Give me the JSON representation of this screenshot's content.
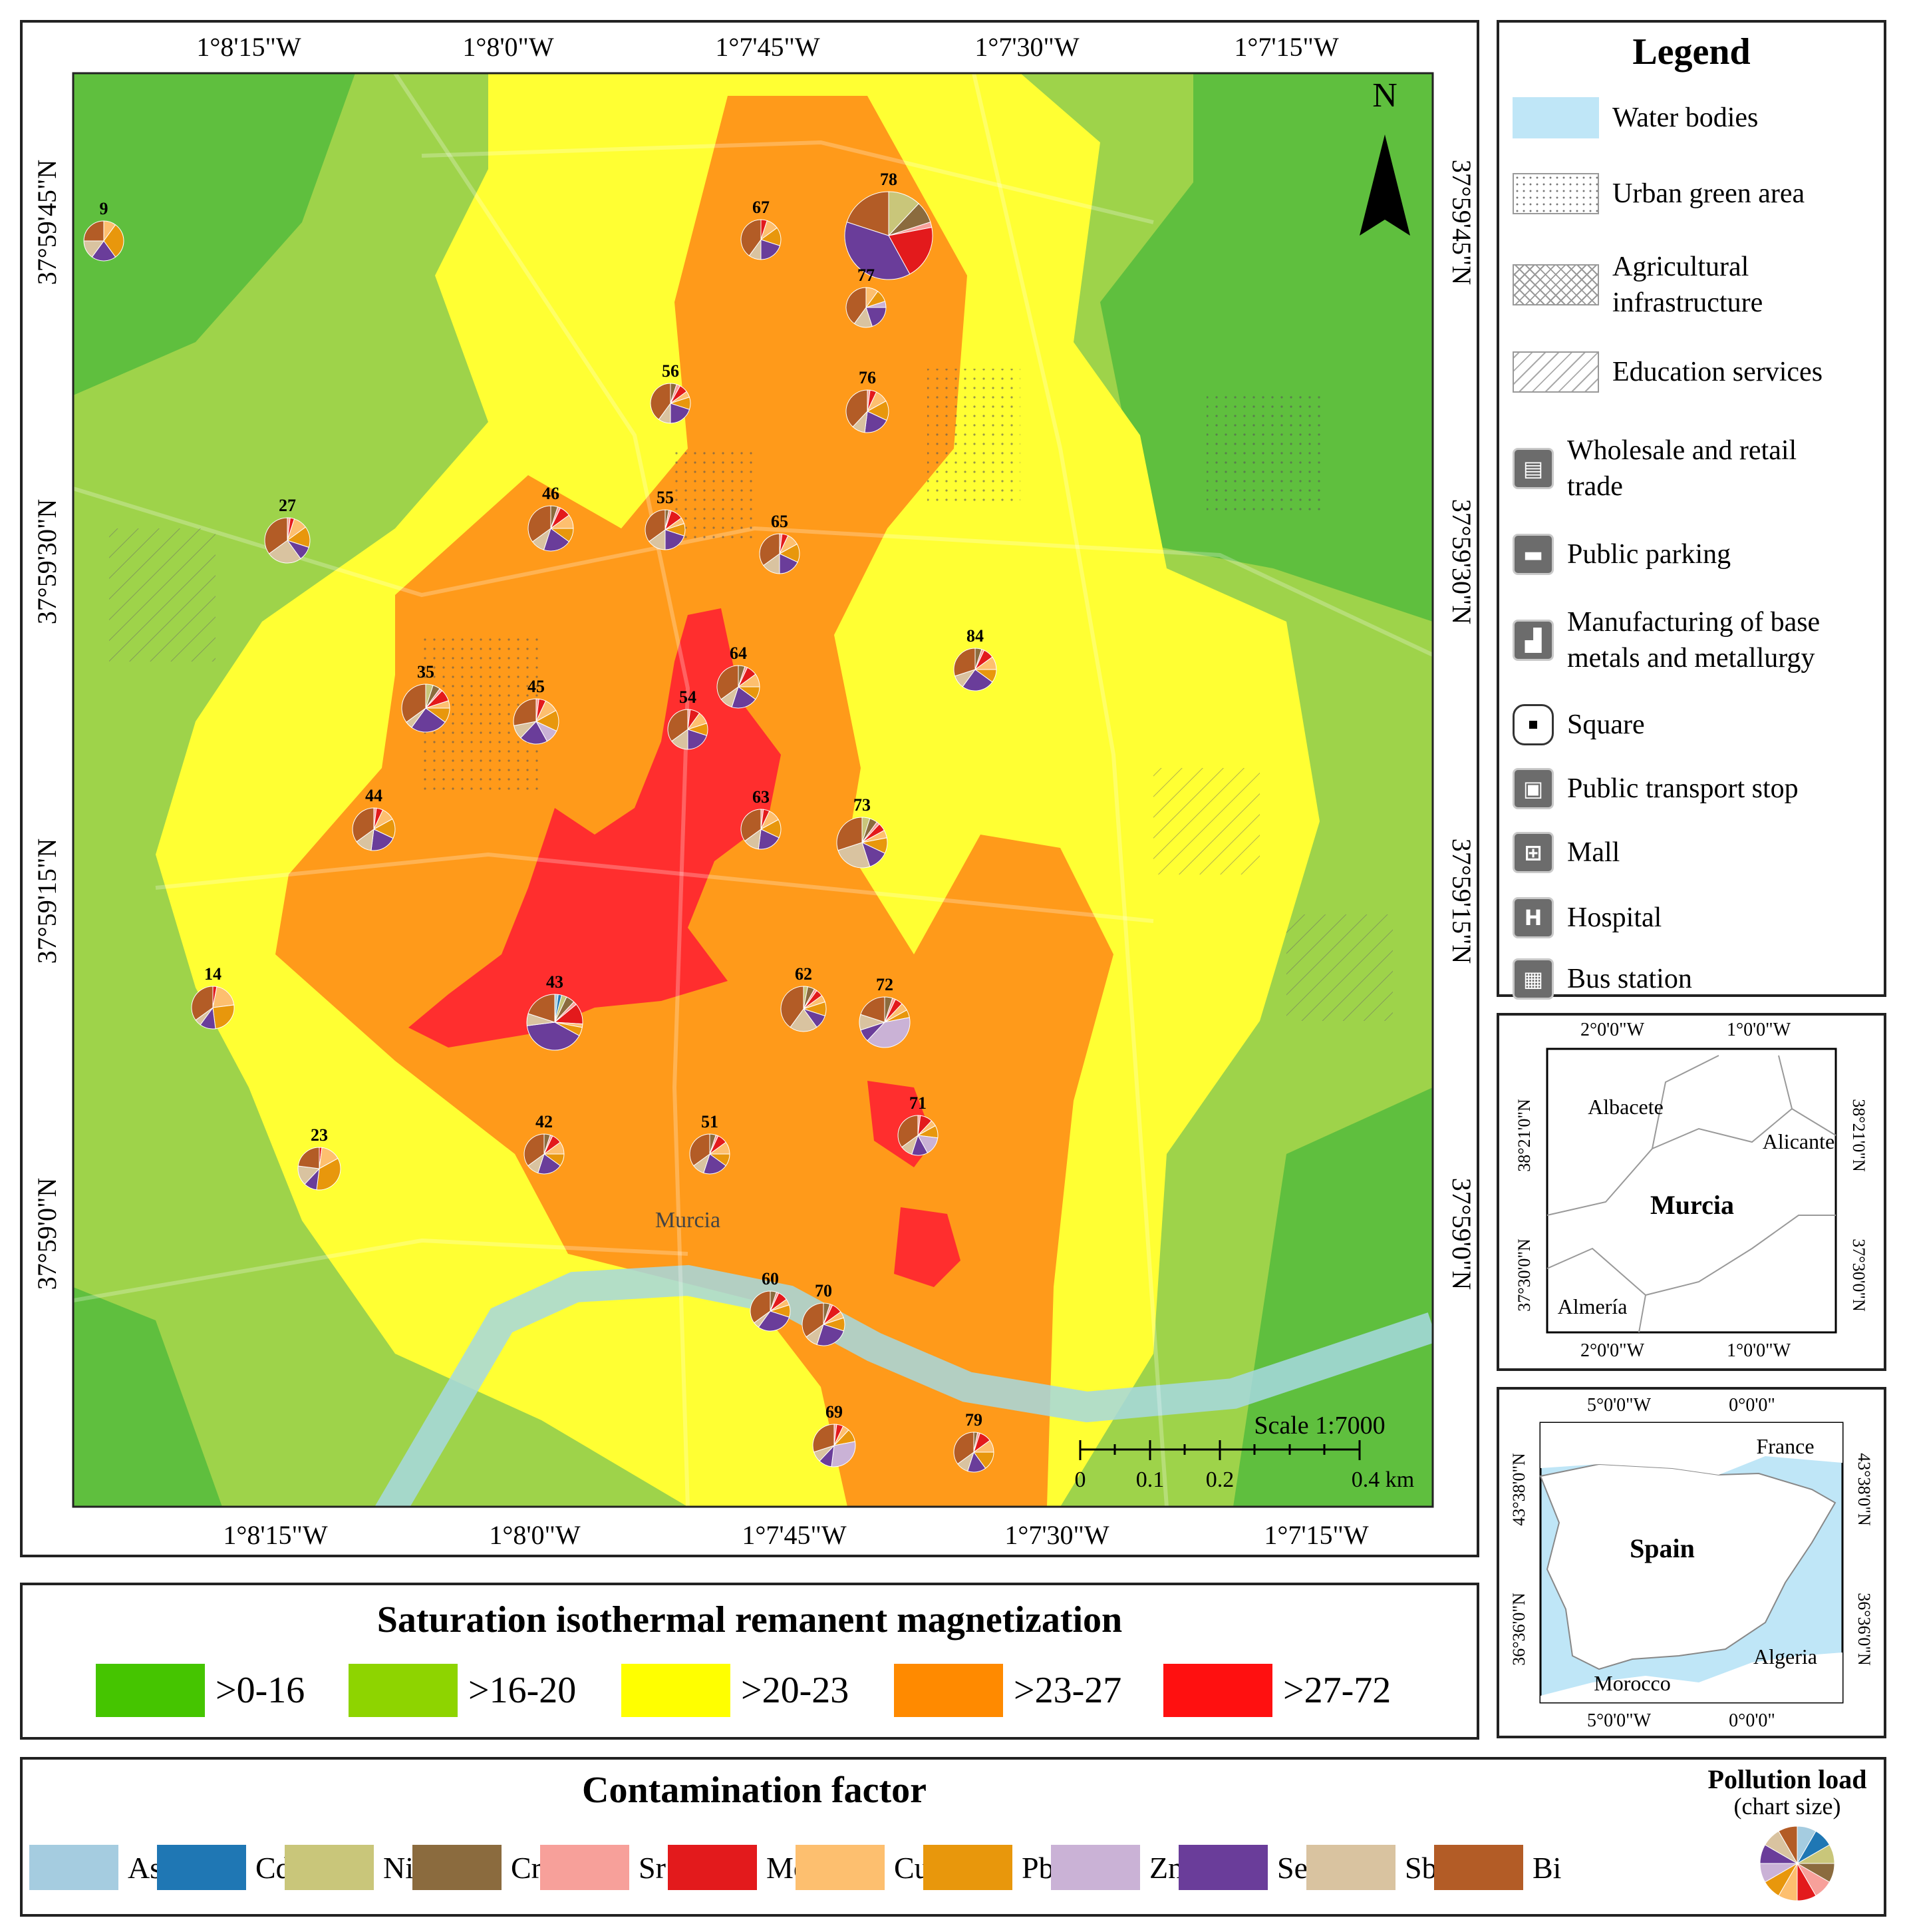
{
  "north_arrow": "N",
  "map_coords": {
    "top_longitudes": [
      "1°8'15\"W",
      "1°8'0\"W",
      "1°7'45\"W",
      "1°7'30\"W",
      "1°7'15\"W"
    ],
    "bottom_longitudes": [
      "1°8'15\"W",
      "1°8'0\"W",
      "1°7'45\"W",
      "1°7'30\"W",
      "1°7'15\"W"
    ],
    "left_latitudes": [
      "37°59'45\"N",
      "37°59'30\"N",
      "37°59'15\"N",
      "37°59'0\"N"
    ],
    "right_latitudes": [
      "37°59'45\"N",
      "37°59'30\"N",
      "37°59'15\"N",
      "37°59'0\"N"
    ]
  },
  "scale": {
    "title": "Scale 1:7000",
    "ticks": [
      "0",
      "0.1",
      "0.2",
      "0.4 km"
    ]
  },
  "place_label": "Murcia",
  "sample_sites": [
    {
      "id": "9",
      "slices": [
        0,
        0,
        0,
        0,
        0,
        0,
        0.1,
        0.3,
        0,
        0.2,
        0.15,
        0.25
      ]
    },
    {
      "id": "67",
      "slices": [
        0,
        0,
        0,
        0,
        0,
        0.05,
        0.1,
        0.15,
        0,
        0.2,
        0.1,
        0.4
      ]
    },
    {
      "id": "78",
      "slices": [
        0,
        0,
        0.12,
        0.08,
        0.02,
        0.2,
        0,
        0,
        0,
        0.38,
        0,
        0.2
      ]
    },
    {
      "id": "77",
      "slices": [
        0,
        0,
        0,
        0,
        0,
        0,
        0.1,
        0.1,
        0.05,
        0.2,
        0.15,
        0.4
      ]
    },
    {
      "id": "56",
      "slices": [
        0,
        0,
        0,
        0.05,
        0.03,
        0.07,
        0.05,
        0.1,
        0,
        0.2,
        0.1,
        0.4
      ]
    },
    {
      "id": "76",
      "slices": [
        0,
        0,
        0,
        0,
        0.02,
        0.05,
        0.1,
        0.15,
        0,
        0.2,
        0.1,
        0.38
      ]
    },
    {
      "id": "27",
      "slices": [
        0,
        0,
        0,
        0,
        0.02,
        0.03,
        0.1,
        0.15,
        0,
        0.1,
        0.25,
        0.35
      ]
    },
    {
      "id": "46",
      "slices": [
        0,
        0,
        0,
        0.05,
        0.02,
        0.08,
        0.1,
        0.1,
        0,
        0.2,
        0.1,
        0.35
      ]
    },
    {
      "id": "55",
      "slices": [
        0,
        0,
        0,
        0.03,
        0.02,
        0.1,
        0.05,
        0.1,
        0,
        0.2,
        0.15,
        0.35
      ]
    },
    {
      "id": "65",
      "slices": [
        0,
        0,
        0,
        0,
        0.02,
        0.05,
        0.1,
        0.15,
        0,
        0.18,
        0.15,
        0.35
      ]
    },
    {
      "id": "84",
      "slices": [
        0,
        0,
        0,
        0.05,
        0.02,
        0.08,
        0.1,
        0.1,
        0,
        0.25,
        0.1,
        0.3
      ]
    },
    {
      "id": "35",
      "slices": [
        0,
        0,
        0.05,
        0.05,
        0.02,
        0.08,
        0.05,
        0.1,
        0,
        0.25,
        0.05,
        0.35
      ]
    },
    {
      "id": "45",
      "slices": [
        0,
        0,
        0,
        0,
        0.02,
        0.05,
        0.1,
        0.15,
        0.1,
        0.2,
        0.1,
        0.28
      ]
    },
    {
      "id": "54",
      "slices": [
        0,
        0,
        0,
        0,
        0.02,
        0.08,
        0.1,
        0.1,
        0,
        0.2,
        0.15,
        0.35
      ]
    },
    {
      "id": "64",
      "slices": [
        0,
        0,
        0,
        0.05,
        0.02,
        0.08,
        0.1,
        0.1,
        0,
        0.2,
        0.1,
        0.35
      ]
    },
    {
      "id": "44",
      "slices": [
        0,
        0,
        0,
        0,
        0.02,
        0.05,
        0.1,
        0.15,
        0,
        0.2,
        0.13,
        0.35
      ]
    },
    {
      "id": "63",
      "slices": [
        0,
        0,
        0,
        0,
        0.02,
        0.05,
        0.1,
        0.15,
        0,
        0.2,
        0.13,
        0.35
      ]
    },
    {
      "id": "73",
      "slices": [
        0,
        0,
        0.05,
        0.05,
        0.02,
        0.05,
        0.05,
        0.1,
        0,
        0.13,
        0.25,
        0.3
      ]
    },
    {
      "id": "14",
      "slices": [
        0,
        0,
        0,
        0,
        0,
        0.03,
        0.2,
        0.25,
        0,
        0.12,
        0.05,
        0.35
      ]
    },
    {
      "id": "43",
      "slices": [
        0.02,
        0.02,
        0.03,
        0.05,
        0.02,
        0.12,
        0.02,
        0.05,
        0,
        0.4,
        0.07,
        0.2
      ]
    },
    {
      "id": "62",
      "slices": [
        0,
        0,
        0.03,
        0.05,
        0.02,
        0.05,
        0.05,
        0.1,
        0,
        0.1,
        0.2,
        0.4
      ]
    },
    {
      "id": "72",
      "slices": [
        0,
        0,
        0,
        0.05,
        0.02,
        0.05,
        0.05,
        0.05,
        0.4,
        0.08,
        0.1,
        0.2
      ]
    },
    {
      "id": "71",
      "slices": [
        0,
        0,
        0,
        0,
        0.02,
        0.1,
        0.05,
        0.1,
        0.15,
        0.13,
        0.1,
        0.35
      ]
    },
    {
      "id": "23",
      "slices": [
        0,
        0,
        0,
        0,
        0,
        0.02,
        0.15,
        0.35,
        0,
        0.1,
        0.15,
        0.23
      ]
    },
    {
      "id": "42",
      "slices": [
        0,
        0,
        0,
        0.05,
        0.02,
        0.08,
        0.1,
        0.1,
        0,
        0.2,
        0.1,
        0.35
      ]
    },
    {
      "id": "51",
      "slices": [
        0,
        0,
        0,
        0.05,
        0.02,
        0.08,
        0.1,
        0.1,
        0,
        0.2,
        0.1,
        0.35
      ]
    },
    {
      "id": "60",
      "slices": [
        0,
        0,
        0,
        0.05,
        0.02,
        0.08,
        0.05,
        0.1,
        0,
        0.3,
        0.05,
        0.35
      ]
    },
    {
      "id": "70",
      "slices": [
        0,
        0,
        0,
        0.05,
        0.02,
        0.08,
        0.05,
        0.1,
        0,
        0.25,
        0.1,
        0.35
      ]
    },
    {
      "id": "69",
      "slices": [
        0,
        0,
        0,
        0,
        0.02,
        0.05,
        0.05,
        0.1,
        0.3,
        0.1,
        0.08,
        0.3
      ]
    },
    {
      "id": "79",
      "slices": [
        0,
        0,
        0,
        0.03,
        0.02,
        0.1,
        0.1,
        0.15,
        0,
        0.15,
        0.1,
        0.35
      ]
    }
  ],
  "legend": {
    "title": "Legend",
    "items": [
      {
        "label": "Water bodies",
        "kind": "water"
      },
      {
        "label": "Urban green area",
        "kind": "dots"
      },
      {
        "label": "Agricultural infrastructure",
        "kind": "cross"
      },
      {
        "label": "Education services",
        "kind": "hatch"
      },
      {
        "label": "Wholesale and retail trade",
        "kind": "icon",
        "glyph": "▤"
      },
      {
        "label": "Public parking",
        "kind": "icon",
        "glyph": "▬"
      },
      {
        "label": "Manufacturing of base metals and metallurgy",
        "kind": "icon",
        "glyph": "▟"
      },
      {
        "label": "Square",
        "kind": "square"
      },
      {
        "label": "Public transport stop",
        "kind": "icon",
        "glyph": "▣"
      },
      {
        "label": "Mall",
        "kind": "icon",
        "glyph": "⊞"
      },
      {
        "label": "Hospital",
        "kind": "icon",
        "glyph": "H"
      },
      {
        "label": "Bus station",
        "kind": "icon",
        "glyph": "▦"
      }
    ]
  },
  "murcia_inset": {
    "top_lons": [
      "2°0'0\"W",
      "1°0'0\"W"
    ],
    "bottom_lons": [
      "2°0'0\"W",
      "1°0'0\"W"
    ],
    "lats": [
      "38°21'0\"N",
      "37°30'0\"N"
    ],
    "places": {
      "albacete": "Albacete",
      "alicante": "Alicante",
      "murcia": "Murcia",
      "almeria": "Almería"
    }
  },
  "spain_inset": {
    "top_lons": [
      "5°0'0\"W",
      "0°0'0\""
    ],
    "bottom_lons": [
      "5°0'0\"W",
      "0°0'0\""
    ],
    "lats": [
      "43°38'0\"N",
      "36°36'0\"N"
    ],
    "places": {
      "france": "France",
      "spain": "Spain",
      "algeria": "Algeria",
      "morocco": "Morocco"
    }
  },
  "sirm": {
    "title": "Saturation isothermal remanent magnetization",
    "classes": [
      {
        "label": ">0-16",
        "color": "#45c500"
      },
      {
        "label": ">16-20",
        "color": "#8ed400"
      },
      {
        "label": ">20-23",
        "color": "#ffff00"
      },
      {
        "label": ">23-27",
        "color": "#ff8a00"
      },
      {
        "label": ">27-72",
        "color": "#ff1010"
      }
    ]
  },
  "contamination": {
    "title": "Contamination factor",
    "elements": [
      {
        "label": "As",
        "color": "#a5cce0"
      },
      {
        "label": "Cd",
        "color": "#1f77b4"
      },
      {
        "label": "Ni",
        "color": "#c9c67a"
      },
      {
        "label": "Cr",
        "color": "#8b6b3e"
      },
      {
        "label": "Sr",
        "color": "#f7a09a"
      },
      {
        "label": "Mo",
        "color": "#e31a1c"
      },
      {
        "label": "Cu",
        "color": "#fdbf6f"
      },
      {
        "label": "Pb",
        "color": "#e8970c"
      },
      {
        "label": "Zn",
        "color": "#cab2d6"
      },
      {
        "label": "Se",
        "color": "#6a3d9a"
      },
      {
        "label": "Sb",
        "color": "#d9c3a0"
      },
      {
        "label": "Bi",
        "color": "#b35c26"
      }
    ],
    "pollution_load_title": "Pollution load",
    "pollution_load_sub": "(chart size)"
  }
}
